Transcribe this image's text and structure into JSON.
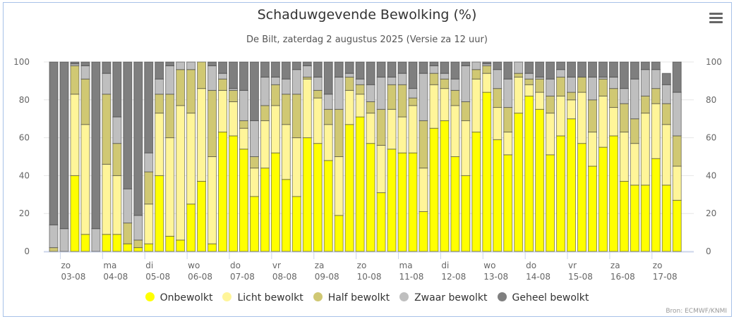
{
  "header": {
    "title": "Schaduwgevende Bewolking (%)",
    "subtitle": "De Bilt, zaterdag 2 augustus 2025 (Versie za 12 uur)",
    "menu_icon": "hamburger-menu-icon"
  },
  "credits": "Bron: ECMWF/KNMI",
  "colors": {
    "Onbewolkt": "#ffff00",
    "Licht bewolkt": "#fff599",
    "Half bewolkt": "#d0c873",
    "Zwaar bewolkt": "#bfbfbf",
    "Geheel bewolkt": "#7f7f7f"
  },
  "chart_data": {
    "type": "bar",
    "stacked": true,
    "title": "Schaduwgevende Bewolking (%)",
    "subtitle": "De Bilt, zaterdag 2 augustus 2025 (Versie za 12 uur)",
    "xlabel": "",
    "ylabel": "",
    "ylim": [
      0,
      100
    ],
    "yticks": [
      0,
      20,
      40,
      60,
      80,
      100
    ],
    "y_axis_both_sides": true,
    "grid": true,
    "legend_position": "bottom",
    "interval": "6-hourly",
    "day_labels": [
      {
        "day": "zo",
        "date": "03-08"
      },
      {
        "day": "ma",
        "date": "04-08"
      },
      {
        "day": "di",
        "date": "05-08"
      },
      {
        "day": "wo",
        "date": "06-08"
      },
      {
        "day": "do",
        "date": "07-08"
      },
      {
        "day": "vr",
        "date": "08-08"
      },
      {
        "day": "za",
        "date": "09-08"
      },
      {
        "day": "zo",
        "date": "10-08"
      },
      {
        "day": "ma",
        "date": "11-08"
      },
      {
        "day": "di",
        "date": "12-08"
      },
      {
        "day": "wo",
        "date": "13-08"
      },
      {
        "day": "do",
        "date": "14-08"
      },
      {
        "day": "vr",
        "date": "15-08"
      },
      {
        "day": "za",
        "date": "16-08"
      },
      {
        "day": "zo",
        "date": "17-08"
      }
    ],
    "series": [
      {
        "name": "Onbewolkt",
        "values": [
          0,
          0,
          40,
          9,
          0,
          9,
          9,
          4,
          2,
          4,
          40,
          8,
          6,
          25,
          37,
          4,
          63,
          61,
          54,
          29,
          44,
          52,
          38,
          29,
          60,
          57,
          48,
          19,
          67,
          71,
          57,
          31,
          54,
          52,
          52,
          21,
          65,
          69,
          50,
          40,
          63,
          84,
          59,
          51,
          73,
          82,
          75,
          51,
          61,
          70,
          57,
          45,
          55,
          61,
          37,
          35,
          35,
          49,
          35,
          27
        ]
      },
      {
        "name": "Licht bewolkt",
        "values": [
          0,
          0,
          43,
          58,
          0,
          37,
          31,
          0,
          0,
          21,
          33,
          52,
          71,
          48,
          49,
          46,
          22,
          18,
          11,
          15,
          25,
          25,
          29,
          31,
          31,
          24,
          19,
          31,
          18,
          12,
          16,
          25,
          21,
          19,
          25,
          23,
          23,
          17,
          27,
          29,
          28,
          10,
          17,
          12,
          19,
          6,
          9,
          22,
          21,
          10,
          27,
          18,
          27,
          15,
          26,
          22,
          38,
          29,
          32,
          18
        ]
      },
      {
        "name": "Half bewolkt",
        "values": [
          2,
          0,
          15,
          24,
          0,
          37,
          17,
          11,
          4,
          17,
          10,
          23,
          19,
          23,
          14,
          35,
          6,
          6,
          4,
          6,
          8,
          11,
          16,
          23,
          1,
          4,
          8,
          25,
          7,
          5,
          6,
          19,
          13,
          17,
          4,
          25,
          6,
          5,
          8,
          10,
          5,
          4,
          10,
          13,
          2,
          3,
          7,
          9,
          10,
          4,
          8,
          17,
          9,
          10,
          15,
          13,
          9,
          8,
          11,
          16
        ]
      },
      {
        "name": "Zwaar bewolkt",
        "values": [
          12,
          12,
          1,
          7,
          12,
          11,
          14,
          18,
          13,
          10,
          8,
          15,
          4,
          4,
          0,
          13,
          3,
          1,
          16,
          19,
          15,
          4,
          8,
          13,
          6,
          7,
          8,
          17,
          2,
          3,
          9,
          17,
          4,
          6,
          5,
          25,
          4,
          3,
          6,
          19,
          4,
          1,
          10,
          15,
          6,
          3,
          1,
          9,
          4,
          8,
          0,
          12,
          1,
          6,
          8,
          21,
          14,
          10,
          10,
          23
        ]
      },
      {
        "name": "Geheel bewolkt",
        "values": [
          86,
          88,
          1,
          2,
          88,
          6,
          29,
          67,
          81,
          48,
          9,
          2,
          0,
          0,
          0,
          2,
          6,
          14,
          15,
          31,
          8,
          8,
          9,
          4,
          2,
          8,
          17,
          8,
          6,
          9,
          12,
          8,
          8,
          6,
          14,
          6,
          2,
          6,
          9,
          2,
          0,
          1,
          4,
          9,
          0,
          6,
          8,
          9,
          4,
          8,
          8,
          8,
          8,
          8,
          14,
          9,
          4,
          4,
          6,
          16
        ]
      }
    ]
  }
}
